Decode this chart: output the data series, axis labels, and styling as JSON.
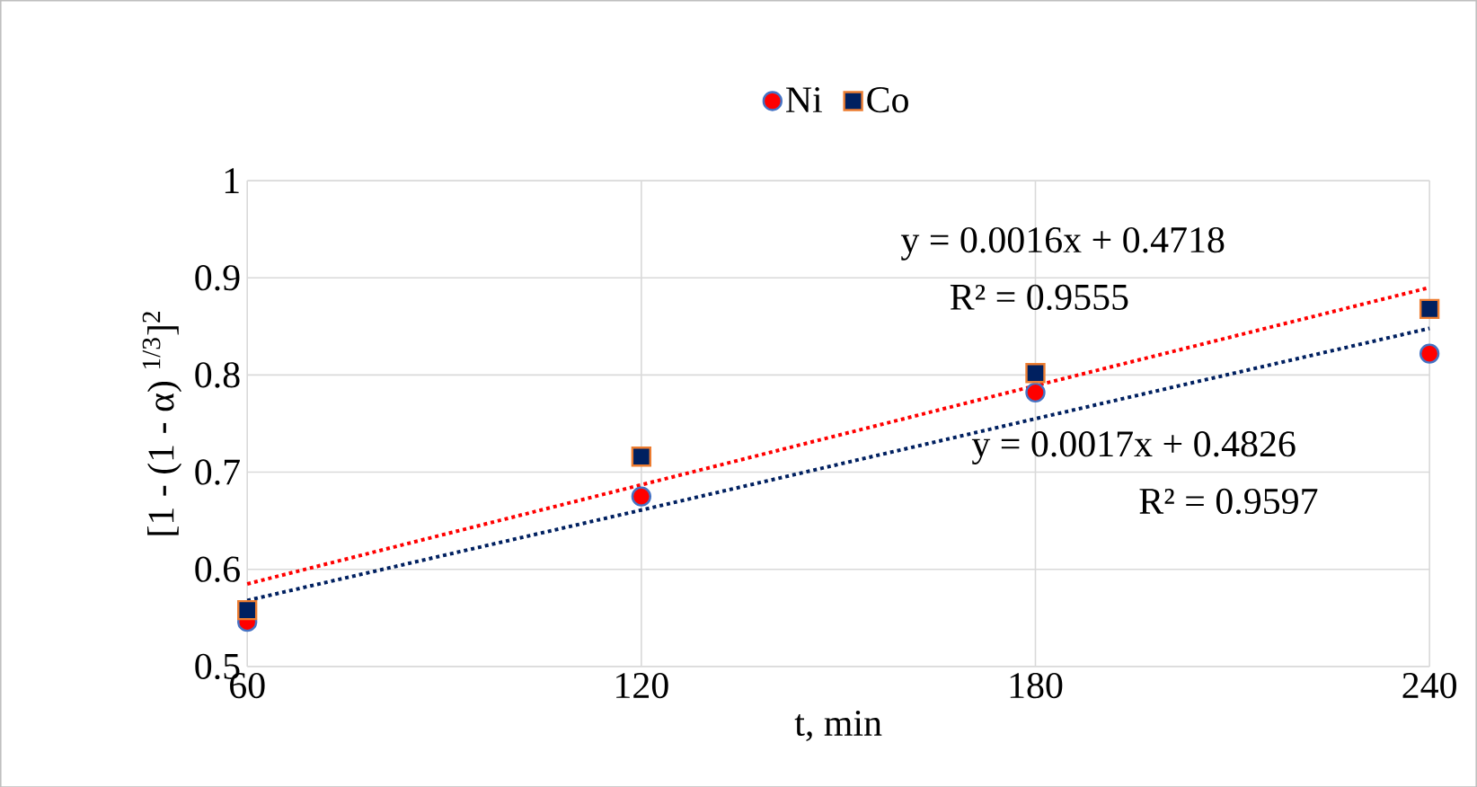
{
  "chart_data": {
    "type": "scatter",
    "xlabel": "t, min",
    "ylabel": "[1 - (1 - α) $^{1/3}$]$^{2}$",
    "x": [
      60,
      120,
      180,
      240
    ],
    "series": [
      {
        "name": "Ni",
        "color": "#ff0000",
        "marker": "circle",
        "values": [
          0.546,
          0.675,
          0.782,
          0.822
        ]
      },
      {
        "name": "Co",
        "color": "#002060",
        "marker": "square",
        "values": [
          0.558,
          0.716,
          0.802,
          0.868
        ]
      },
      {
        "type": "line",
        "color": "#ff0000",
        "line_style": "dotted",
        "marker": "none",
        "values": [
          0.585,
          0.687,
          0.789,
          0.89
        ]
      },
      {
        "type": "line",
        "color": "#002060",
        "line_style": "dotted",
        "marker": "none",
        "values": [
          0.568,
          0.661,
          0.755,
          0.848
        ]
      }
    ],
    "annotations": [
      "y = 0.0016x + 0.4718",
      "R² = 0.9555",
      "y = 0.0017x + 0.4826",
      "R² = 0.9597"
    ],
    "xlim": [
      60,
      240
    ],
    "xticks": [
      60,
      120,
      180,
      240
    ],
    "ylim": [
      0.5,
      1
    ],
    "yticks": [
      0.5,
      0.6,
      0.7,
      0.8,
      0.9,
      1
    ],
    "grid": true,
    "legend": "top"
  }
}
